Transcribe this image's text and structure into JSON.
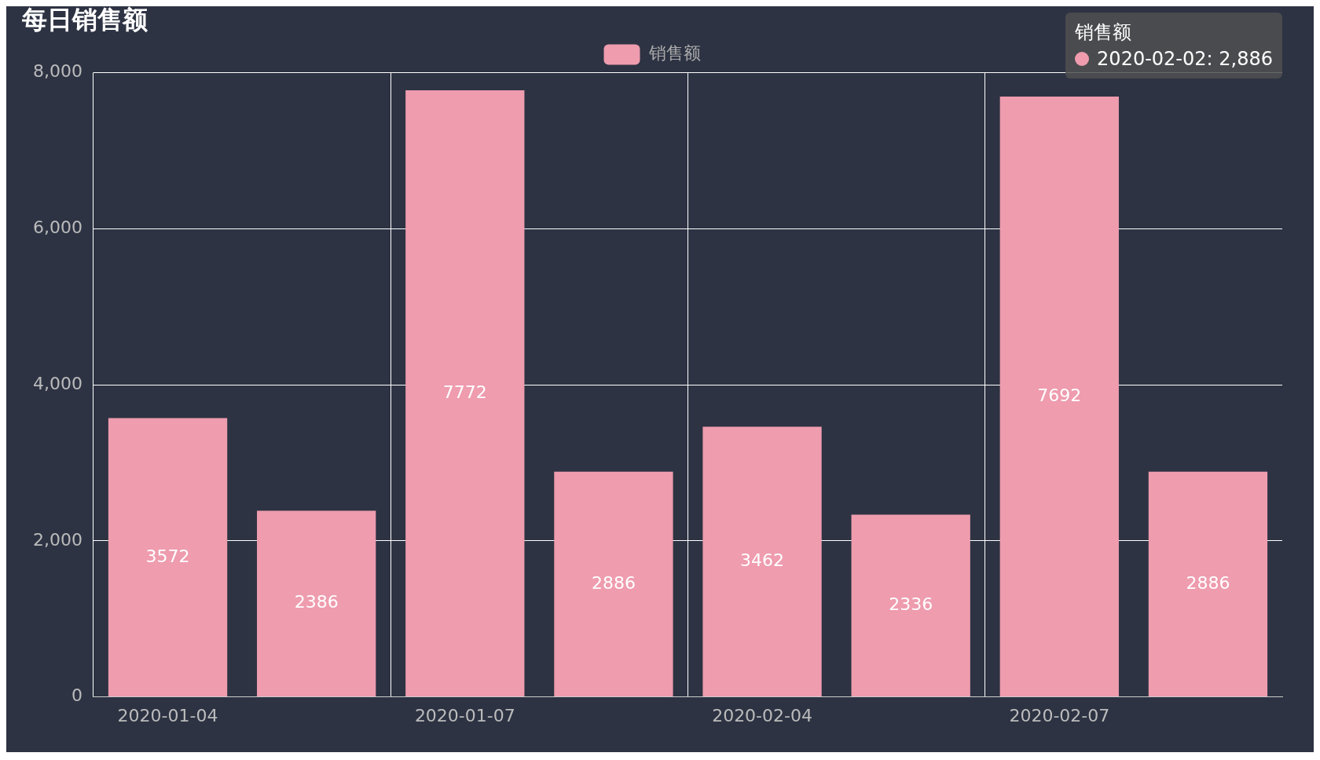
{
  "chart_data": {
    "type": "bar",
    "title": "每日销售额",
    "categories": [
      "2020-01-04",
      null,
      "2020-01-07",
      null,
      "2020-02-04",
      null,
      "2020-02-07",
      null
    ],
    "series": [
      {
        "name": "销售额",
        "color": "#ee9cae",
        "values": [
          3572,
          2386,
          7772,
          2886,
          3462,
          2336,
          7692,
          2886
        ]
      }
    ],
    "ylim": [
      0,
      8000
    ],
    "yticks": [
      {
        "value": 0,
        "label": "0"
      },
      {
        "value": 2000,
        "label": "2,000"
      },
      {
        "value": 4000,
        "label": "4,000"
      },
      {
        "value": 6000,
        "label": "6,000"
      },
      {
        "value": 8000,
        "label": "8,000"
      }
    ],
    "grid": true,
    "legend": "top",
    "data_labels": true,
    "annotations": [
      "销售额",
      "2020-02-02: 2,886"
    ]
  }
}
